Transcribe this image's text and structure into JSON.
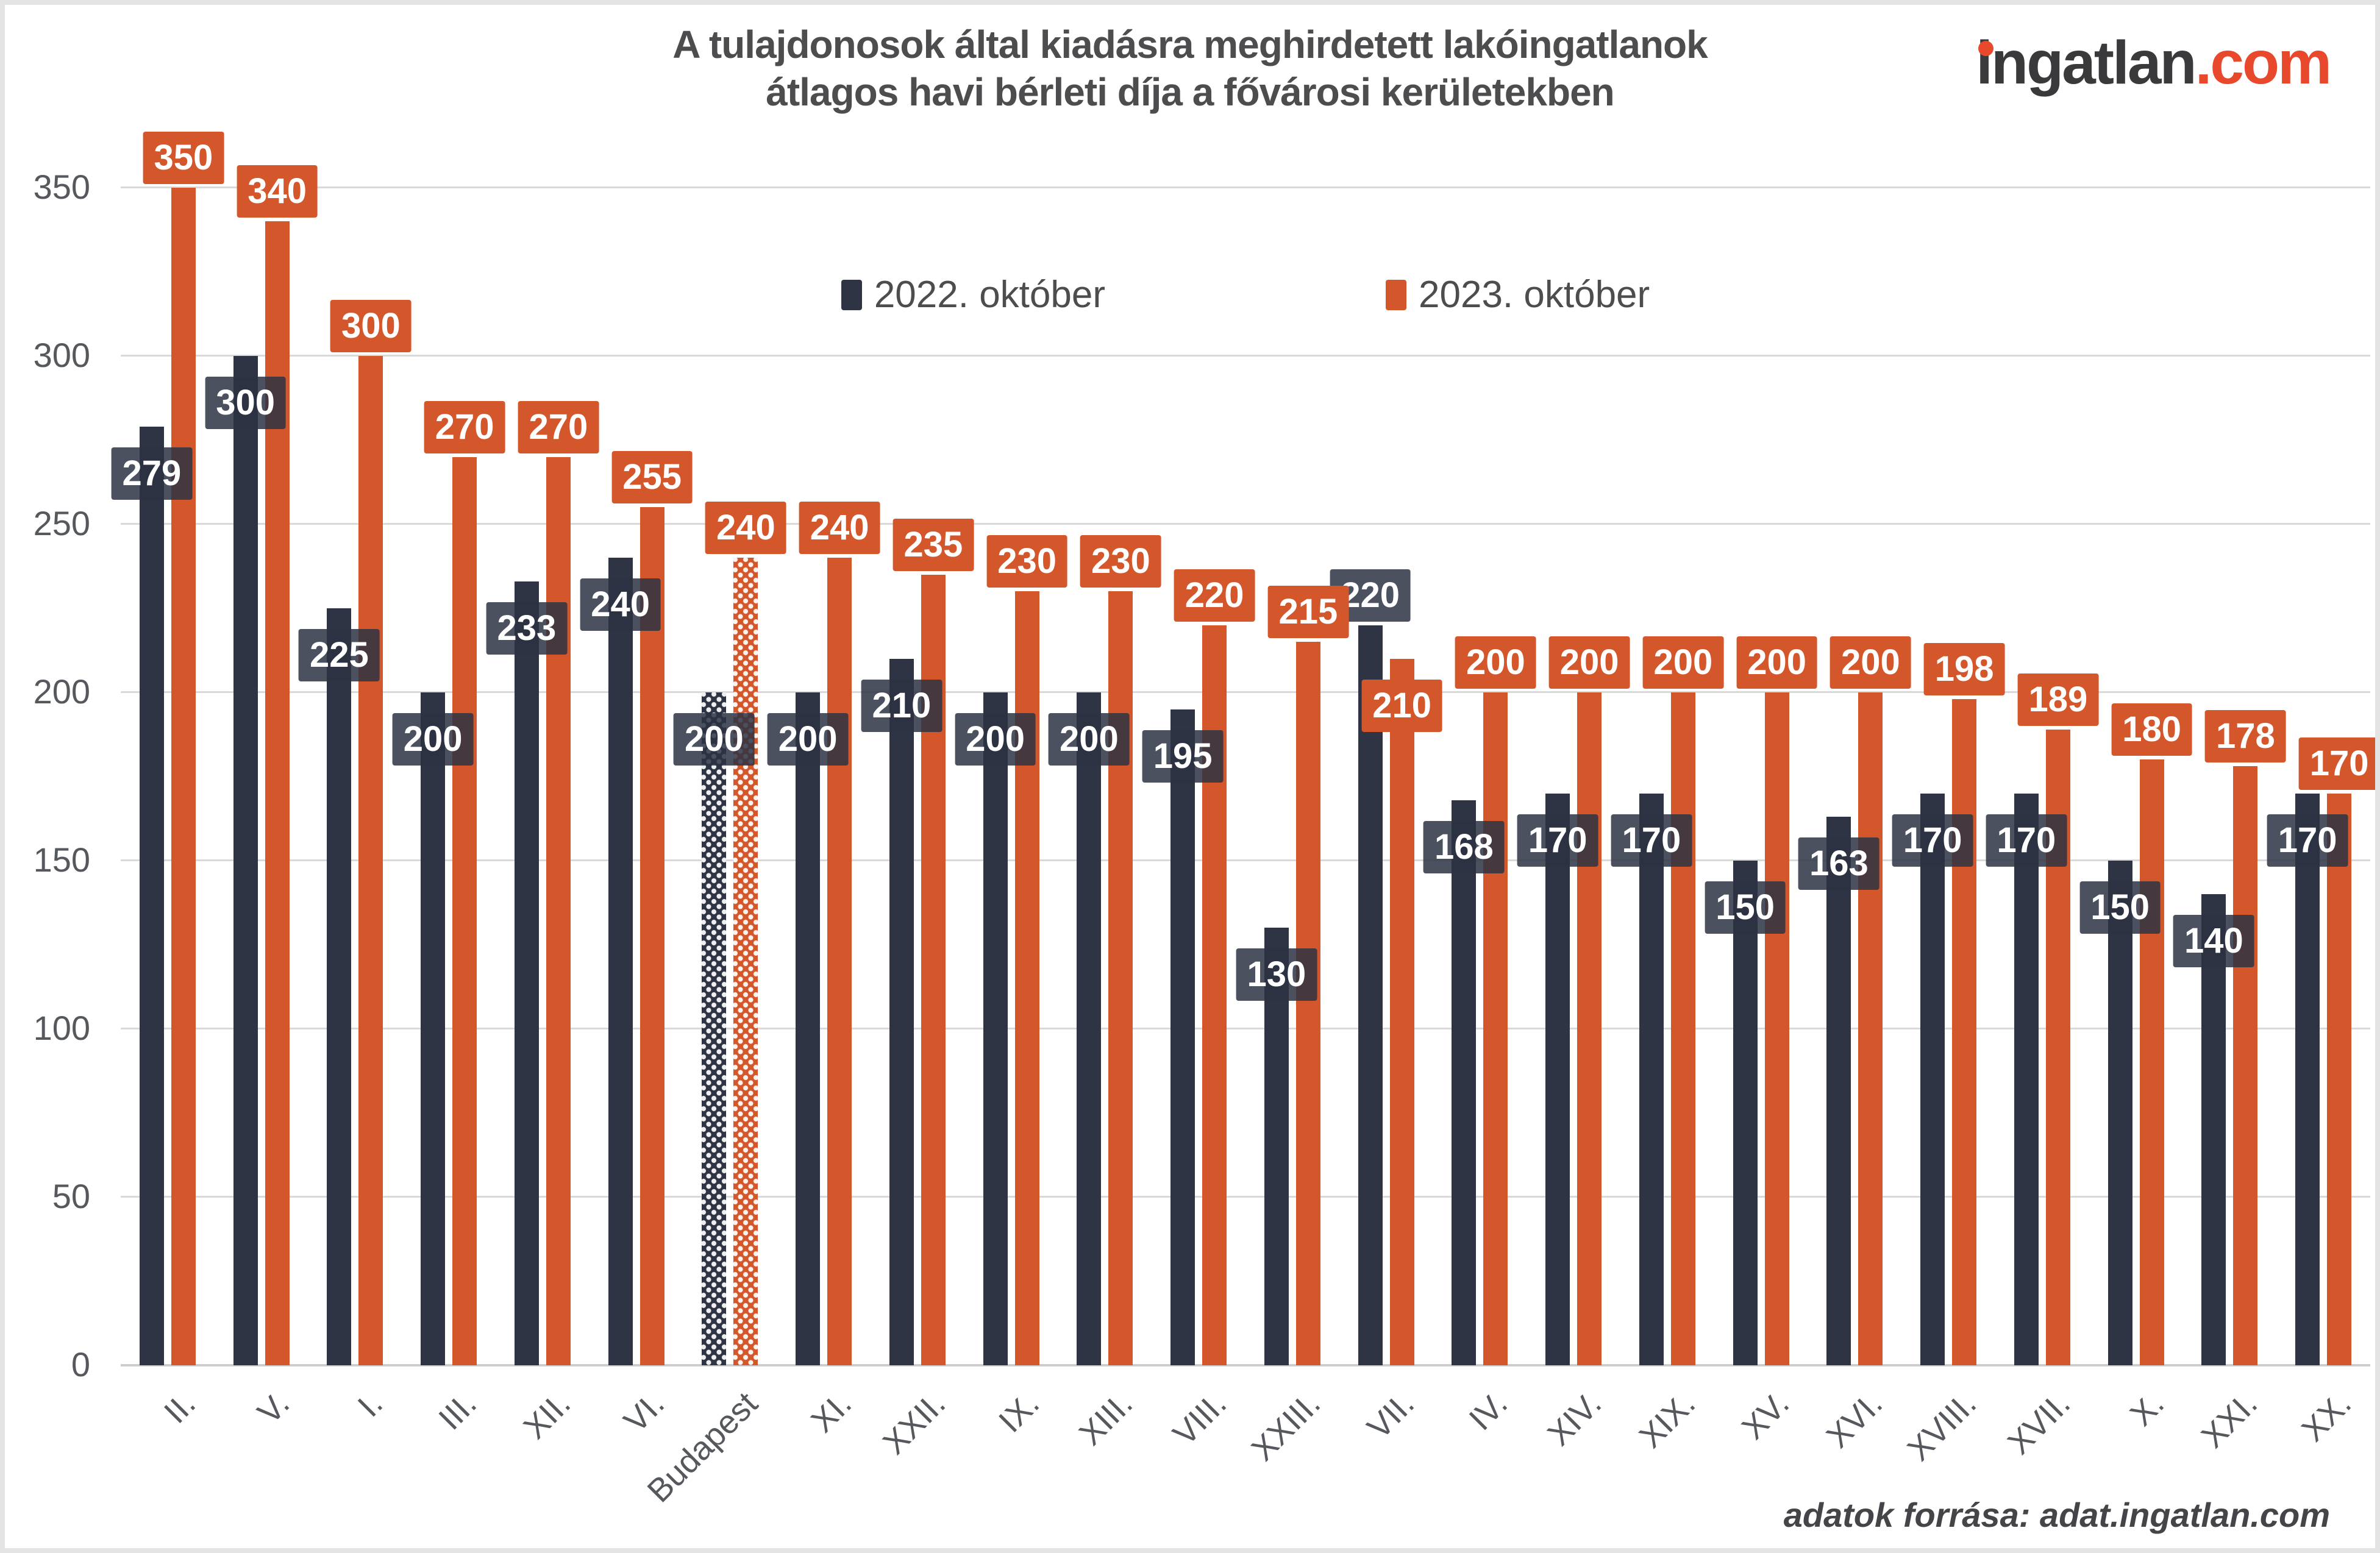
{
  "page": {
    "background": "#ffffff",
    "frame_color": "#e4e4e4"
  },
  "header": {
    "title_line1": "A tulajdonosok által kiadásra meghirdetett lakóingatlanok",
    "title_line2": "átlagos havi bérleti díja a fővárosi kerületekben",
    "logo": {
      "text": "ingatlan.com",
      "main": "ingatlan",
      "suffix": ".com",
      "main_color": "#3a3a3c",
      "accent_color": "#e8492c"
    }
  },
  "footer": {
    "source": "adatok forrása: adat.ingatlan.com"
  },
  "chart_data": {
    "type": "bar",
    "title": "A tulajdonosok által kiadásra meghirdetett lakóingatlanok átlagos havi bérleti díja a fővárosi kerületekben",
    "categories": [
      "II.",
      "V.",
      "I.",
      "III.",
      "XII.",
      "VI.",
      "Budapest",
      "XI.",
      "XXII.",
      "IX.",
      "XIII.",
      "VIII.",
      "XXIII.",
      "VII.",
      "IV.",
      "XIV.",
      "XIX.",
      "XV.",
      "XVI.",
      "XVIII.",
      "XVII.",
      "X.",
      "XXI.",
      "XX."
    ],
    "series": [
      {
        "name": "2022. október",
        "color": "#2e3444",
        "values": [
          279,
          300,
          225,
          200,
          233,
          240,
          200,
          200,
          210,
          200,
          200,
          195,
          130,
          220,
          168,
          170,
          170,
          150,
          163,
          170,
          170,
          150,
          140,
          170
        ]
      },
      {
        "name": "2023. október",
        "color": "#d4572c",
        "values": [
          350,
          340,
          300,
          270,
          270,
          255,
          240,
          240,
          235,
          230,
          230,
          220,
          215,
          210,
          200,
          200,
          200,
          200,
          200,
          198,
          189,
          180,
          178,
          170
        ]
      }
    ],
    "highlight_category": "Budapest",
    "highlight_style": "white-dot-pattern",
    "ylim": [
      0,
      350
    ],
    "yticks": [
      0,
      50,
      100,
      150,
      200,
      250,
      300,
      350
    ],
    "xlabel": "",
    "ylabel": "",
    "grid": true,
    "legend_position": "top-center",
    "value_labels": true,
    "value_label_text_color": "#ffffff",
    "grid_color": "#d9d9d9",
    "axis_text_color": "#55585c"
  }
}
